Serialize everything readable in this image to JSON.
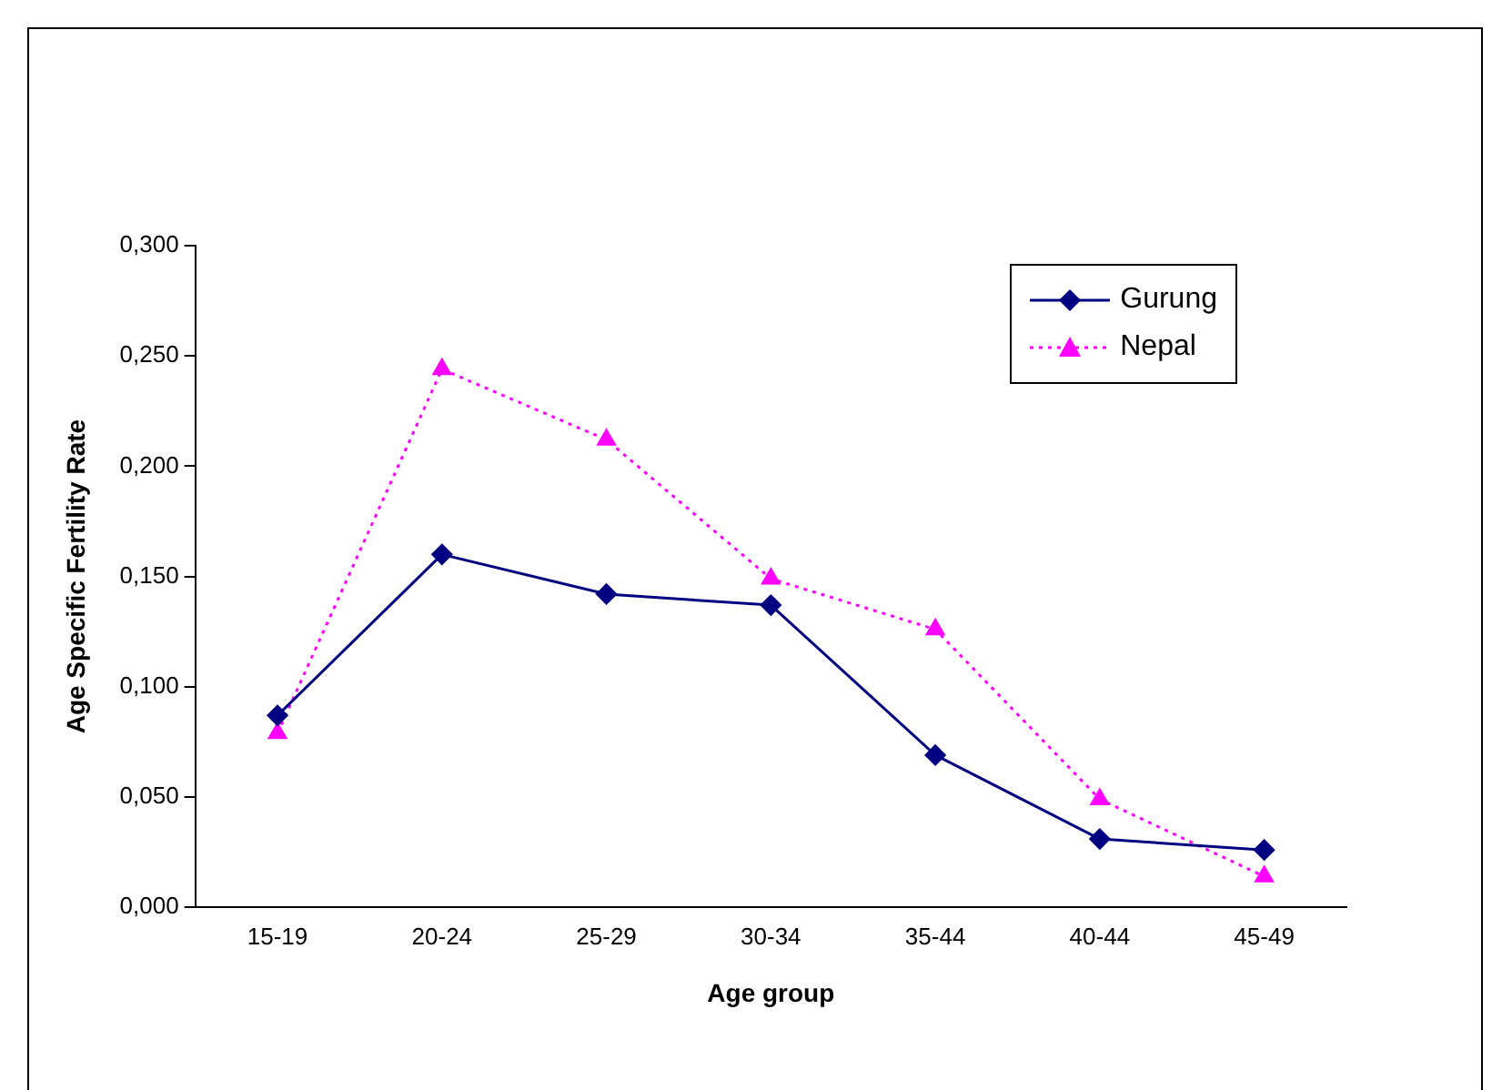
{
  "chart_data": {
    "type": "line",
    "xlabel": "Age group",
    "ylabel": "Age Specific Fertility Rate",
    "categories": [
      "15-19",
      "20-24",
      "25-29",
      "30-34",
      "35-44",
      "40-44",
      "45-49"
    ],
    "series": [
      {
        "name": "Gurung",
        "color": "#000080",
        "marker": "diamond",
        "line_style": "solid",
        "values": [
          0.087,
          0.16,
          0.142,
          0.137,
          0.069,
          0.031,
          0.026
        ]
      },
      {
        "name": "Nepal",
        "color": "#ff00ff",
        "marker": "triangle",
        "line_style": "dotted",
        "values": [
          0.079,
          0.244,
          0.212,
          0.149,
          0.126,
          0.049,
          0.014
        ]
      }
    ],
    "ylim": [
      0,
      0.3
    ],
    "yticks": [
      {
        "value": 0,
        "label": "0,000"
      },
      {
        "value": 0.05,
        "label": "0,050"
      },
      {
        "value": 0.1,
        "label": "0,100"
      },
      {
        "value": 0.15,
        "label": "0,150"
      },
      {
        "value": 0.2,
        "label": "0,200"
      },
      {
        "value": 0.25,
        "label": "0,250"
      },
      {
        "value": 0.3,
        "label": "0,300"
      }
    ],
    "grid": false,
    "legend": "top right"
  }
}
